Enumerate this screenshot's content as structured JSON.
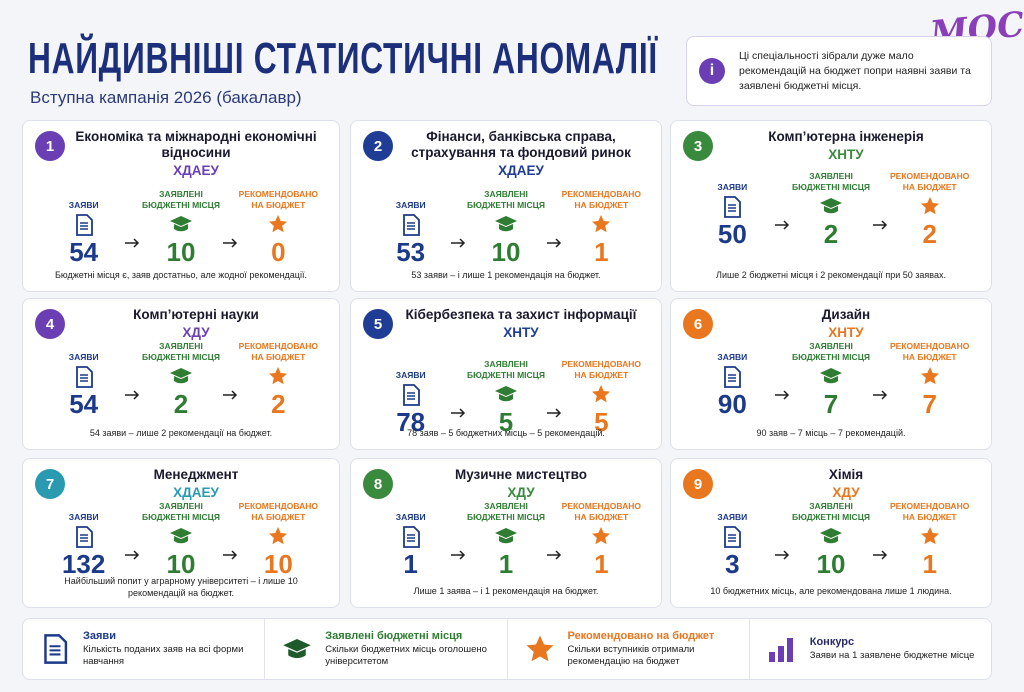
{
  "header": {
    "title": "НАЙДИВНІШІ СТАТИСТИЧНІ АНОМАЛІЇ",
    "subtitle": "Вступна кампанія 2026 (бакалавр)",
    "logo": "МОСТ"
  },
  "info": {
    "icon": "i",
    "text": "Ці спеціальності зібрали дуже мало рекомендацій на бюджет попри наявні заяви та заявлені бюджетні місця."
  },
  "labels": {
    "applications": "ЗАЯВИ",
    "places": "ЗАЯВЛЕНІ БЮДЖЕТНІ МІСЦЯ",
    "recommended": "РЕКОМЕНДОВАНО НА БЮДЖЕТ"
  },
  "cards": [
    {
      "number": 1,
      "name": "Економіка та міжнародні економічні відносини",
      "university": "ХДАЕУ",
      "color": "#6b3fb3",
      "applications": 54,
      "places": 10,
      "recommended": 0,
      "note": "Бюджетні місця є, заяв достатньо, але жодної рекомендації."
    },
    {
      "number": 2,
      "name": "Фінанси, банківська справа, страхування та фондовий ринок",
      "university": "ХДАЕУ",
      "color": "#1f3d94",
      "applications": 53,
      "places": 10,
      "recommended": 1,
      "note": "53 заяви – і лише 1 рекомендація на бюджет."
    },
    {
      "number": 3,
      "name": "Комп’ютерна інженерія",
      "university": "ХНТУ",
      "color": "#3a8a3e",
      "applications": 50,
      "places": 2,
      "recommended": 2,
      "note": "Лише 2 бюджетні місця і 2 рекомендації при 50 заявах."
    },
    {
      "number": 4,
      "name": "Комп’ютерні науки",
      "university": "ХДУ",
      "color": "#6b3fb3",
      "applications": 54,
      "places": 2,
      "recommended": 2,
      "note": "54 заяви – лише 2 рекомендації на бюджет."
    },
    {
      "number": 5,
      "name": "Кібербезпека та захист інформації",
      "university": "ХНТУ",
      "color": "#1f3d94",
      "applications": 78,
      "places": 5,
      "recommended": 5,
      "note": "78 заяв – 5 бюджетних місць – 5 рекомендацій."
    },
    {
      "number": 6,
      "name": "Дизайн",
      "university": "ХНТУ",
      "color": "#e8771f",
      "applications": 90,
      "places": 7,
      "recommended": 7,
      "note": "90 заяв – 7 місць – 7 рекомендацій."
    },
    {
      "number": 7,
      "name": "Менеджмент",
      "university": "ХДАЕУ",
      "color": "#2a9ab0",
      "applications": 132,
      "places": 10,
      "recommended": 10,
      "note": "Найбільший попит у аграрному університеті – і лише 10 рекомендацій на бюджет."
    },
    {
      "number": 8,
      "name": "Музичне мистецтво",
      "university": "ХДУ",
      "color": "#3a8a3e",
      "applications": 1,
      "places": 1,
      "recommended": 1,
      "note": "Лише 1 заява – і 1 рекомендація на бюджет."
    },
    {
      "number": 9,
      "name": "Хімія",
      "university": "ХДУ",
      "color": "#e8771f",
      "applications": 3,
      "places": 10,
      "recommended": 1,
      "note": "10 бюджетних місць, але рекомендована лише 1 людина."
    }
  ],
  "legend": [
    {
      "title": "Заяви",
      "text": "Кількість поданих заяв на всі форми навчання"
    },
    {
      "title": "Заявлені бюджетні місця",
      "text": "Скільки бюджетних місць оголошено університетом"
    },
    {
      "title": "Рекомендовано на бюджет",
      "text": "Скільки вступників отримали рекомендацію на бюджет"
    },
    {
      "title": "Конкурс",
      "text": "Заяви на 1 заявлене бюджетне місце"
    }
  ]
}
